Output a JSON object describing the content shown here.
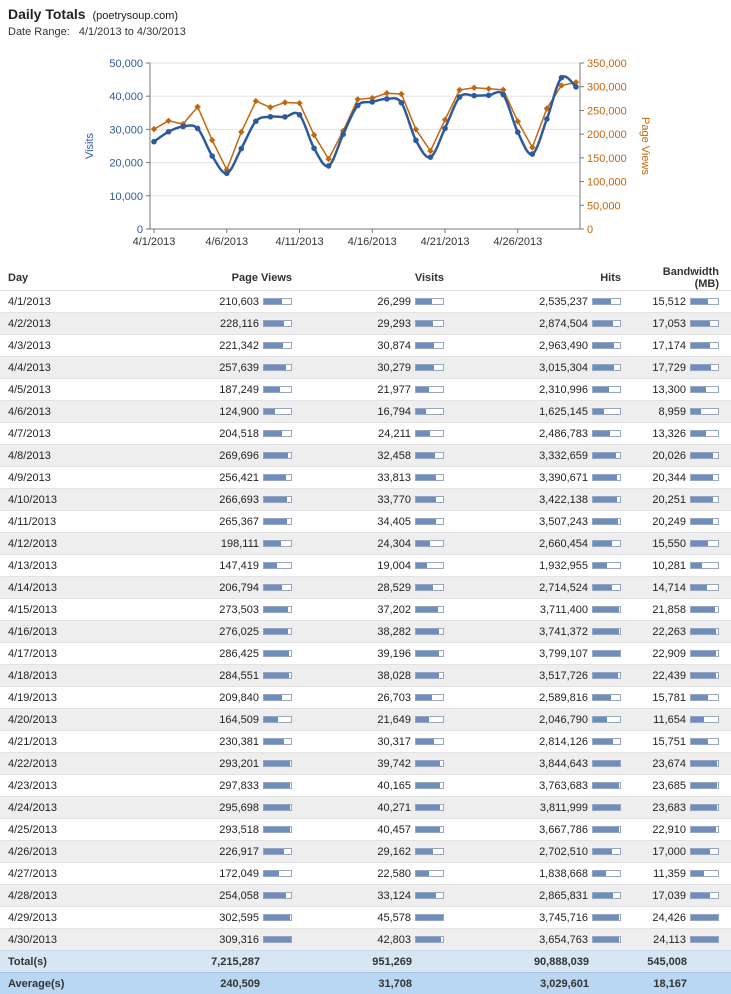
{
  "header": {
    "title": "Daily Totals",
    "site": "(poetrysoup.com)",
    "date_range_label": "Date Range:",
    "date_range_value": "4/1/2013 to 4/30/2013"
  },
  "chart_data": {
    "type": "line",
    "x": [
      "4/1/2013",
      "4/2/2013",
      "4/3/2013",
      "4/4/2013",
      "4/5/2013",
      "4/6/2013",
      "4/7/2013",
      "4/8/2013",
      "4/9/2013",
      "4/10/2013",
      "4/11/2013",
      "4/12/2013",
      "4/13/2013",
      "4/14/2013",
      "4/15/2013",
      "4/16/2013",
      "4/17/2013",
      "4/18/2013",
      "4/19/2013",
      "4/20/2013",
      "4/21/2013",
      "4/22/2013",
      "4/23/2013",
      "4/24/2013",
      "4/25/2013",
      "4/26/2013",
      "4/27/2013",
      "4/28/2013",
      "4/29/2013",
      "4/30/2013"
    ],
    "x_ticks": [
      "4/1/2013",
      "4/6/2013",
      "4/11/2013",
      "4/16/2013",
      "4/21/2013",
      "4/26/2013"
    ],
    "series": [
      {
        "name": "Visits",
        "axis": "left",
        "color": "#2e5a9c",
        "marker": "circle",
        "values": [
          26299,
          29293,
          30874,
          30279,
          21977,
          16794,
          24211,
          32458,
          33813,
          33770,
          34405,
          24304,
          19004,
          28529,
          37202,
          38282,
          39196,
          38028,
          26703,
          21649,
          30317,
          39742,
          40165,
          40271,
          40457,
          29162,
          22580,
          33124,
          45578,
          42803
        ]
      },
      {
        "name": "Page Views",
        "axis": "right",
        "color": "#c0670f",
        "marker": "diamond",
        "values": [
          210603,
          228116,
          221342,
          257639,
          187249,
          124900,
          204518,
          269696,
          256421,
          266693,
          265367,
          198111,
          147419,
          206794,
          273503,
          276025,
          286425,
          284551,
          209840,
          164509,
          230381,
          293201,
          297833,
          295698,
          293518,
          226917,
          172049,
          254058,
          302595,
          309316
        ]
      }
    ],
    "ylabel_left": "Visits",
    "ylabel_right": "Page Views",
    "ylim_left": [
      0,
      50000
    ],
    "yticks_left": [
      "0",
      "10,000",
      "20,000",
      "30,000",
      "40,000",
      "50,000"
    ],
    "ylim_right": [
      0,
      350000
    ],
    "yticks_right": [
      "0",
      "50,000",
      "100,000",
      "150,000",
      "200,000",
      "250,000",
      "300,000",
      "350,000"
    ],
    "grid": "horizontal"
  },
  "table": {
    "columns": [
      "Day",
      "Page Views",
      "Visits",
      "Hits",
      "Bandwidth (MB)"
    ],
    "bar_max": [
      309316,
      45578,
      3844643,
      24426
    ],
    "rows": [
      [
        "4/1/2013",
        "210,603",
        "26,299",
        "2,535,237",
        "15,512"
      ],
      [
        "4/2/2013",
        "228,116",
        "29,293",
        "2,874,504",
        "17,053"
      ],
      [
        "4/3/2013",
        "221,342",
        "30,874",
        "2,963,490",
        "17,174"
      ],
      [
        "4/4/2013",
        "257,639",
        "30,279",
        "3,015,304",
        "17,729"
      ],
      [
        "4/5/2013",
        "187,249",
        "21,977",
        "2,310,996",
        "13,300"
      ],
      [
        "4/6/2013",
        "124,900",
        "16,794",
        "1,625,145",
        "8,959"
      ],
      [
        "4/7/2013",
        "204,518",
        "24,211",
        "2,486,783",
        "13,326"
      ],
      [
        "4/8/2013",
        "269,696",
        "32,458",
        "3,332,659",
        "20,026"
      ],
      [
        "4/9/2013",
        "256,421",
        "33,813",
        "3,390,671",
        "20,344"
      ],
      [
        "4/10/2013",
        "266,693",
        "33,770",
        "3,422,138",
        "20,251"
      ],
      [
        "4/11/2013",
        "265,367",
        "34,405",
        "3,507,243",
        "20,249"
      ],
      [
        "4/12/2013",
        "198,111",
        "24,304",
        "2,660,454",
        "15,550"
      ],
      [
        "4/13/2013",
        "147,419",
        "19,004",
        "1,932,955",
        "10,281"
      ],
      [
        "4/14/2013",
        "206,794",
        "28,529",
        "2,714,524",
        "14,714"
      ],
      [
        "4/15/2013",
        "273,503",
        "37,202",
        "3,711,400",
        "21,858"
      ],
      [
        "4/16/2013",
        "276,025",
        "38,282",
        "3,741,372",
        "22,263"
      ],
      [
        "4/17/2013",
        "286,425",
        "39,196",
        "3,799,107",
        "22,909"
      ],
      [
        "4/18/2013",
        "284,551",
        "38,028",
        "3,517,726",
        "22,439"
      ],
      [
        "4/19/2013",
        "209,840",
        "26,703",
        "2,589,816",
        "15,781"
      ],
      [
        "4/20/2013",
        "164,509",
        "21,649",
        "2,046,790",
        "11,654"
      ],
      [
        "4/21/2013",
        "230,381",
        "30,317",
        "2,814,126",
        "15,751"
      ],
      [
        "4/22/2013",
        "293,201",
        "39,742",
        "3,844,643",
        "23,674"
      ],
      [
        "4/23/2013",
        "297,833",
        "40,165",
        "3,763,683",
        "23,685"
      ],
      [
        "4/24/2013",
        "295,698",
        "40,271",
        "3,811,999",
        "23,683"
      ],
      [
        "4/25/2013",
        "293,518",
        "40,457",
        "3,667,786",
        "22,910"
      ],
      [
        "4/26/2013",
        "226,917",
        "29,162",
        "2,702,510",
        "17,000"
      ],
      [
        "4/27/2013",
        "172,049",
        "22,580",
        "1,838,668",
        "11,359"
      ],
      [
        "4/28/2013",
        "254,058",
        "33,124",
        "2,865,831",
        "17,039"
      ],
      [
        "4/29/2013",
        "302,595",
        "45,578",
        "3,745,716",
        "24,426"
      ],
      [
        "4/30/2013",
        "309,316",
        "42,803",
        "3,654,763",
        "24,113"
      ]
    ],
    "total": [
      "Total(s)",
      "7,215,287",
      "951,269",
      "90,888,039",
      "545,008"
    ],
    "average": [
      "Average(s)",
      "240,509",
      "31,708",
      "3,029,601",
      "18,167"
    ]
  },
  "colors": {
    "visits": "#2e5a9c",
    "page_views": "#c0670f",
    "bar_fill": "#6d8ebf",
    "row_alt": "#eeeeee",
    "total_bg": "#d6e6f5",
    "average_bg": "#b9d7f3"
  }
}
